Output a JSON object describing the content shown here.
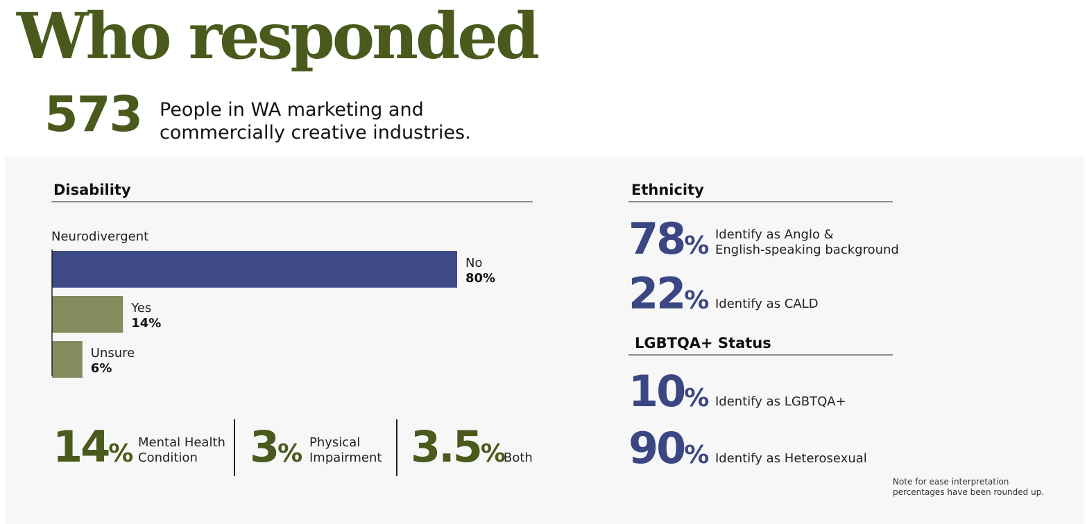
{
  "header": {
    "title": "Who responded",
    "count": "573",
    "subtitle_line1": "People in WA marketing and",
    "subtitle_line2": "commercially creative industries."
  },
  "disability": {
    "heading": "Disability",
    "conditions": [
      {
        "value": "14",
        "pct": "%",
        "line1": "Mental Health",
        "line2": "Condition"
      },
      {
        "value": "3",
        "pct": "%",
        "line1": "Physical",
        "line2": "Impairment"
      },
      {
        "value": "3.5",
        "pct": "%",
        "line1": "",
        "line2": "Both"
      }
    ]
  },
  "chart_data": {
    "type": "bar",
    "orientation": "horizontal",
    "title": "Neurodivergent",
    "categories": [
      "No",
      "Yes",
      "Unsure"
    ],
    "values": [
      80,
      14,
      6
    ],
    "value_labels": [
      "80%",
      "14%",
      "6%"
    ],
    "colors": [
      "#3d4a85",
      "#858b5c",
      "#858b5c"
    ],
    "xlim": [
      0,
      80
    ]
  },
  "ethnicity": {
    "heading": "Ethnicity",
    "items": [
      {
        "value": "78",
        "pct": "%",
        "line1": "Identify as Anglo &",
        "line2": "English-speaking background"
      },
      {
        "value": "22",
        "pct": "%",
        "line1": "Identify as CALD",
        "line2": ""
      }
    ]
  },
  "lgbtqa": {
    "heading": "LGBTQA+ Status",
    "items": [
      {
        "value": "10",
        "pct": "%",
        "line1": "Identify as  LGBTQA+"
      },
      {
        "value": "90",
        "pct": "%",
        "line1": "Identify as Heterosexual"
      }
    ]
  },
  "note": {
    "line1": "Note for ease interpretation",
    "line2": "percentages have been rounded up."
  },
  "colors": {
    "green": "#4a5a1c",
    "blue": "#3b4783",
    "bar_blue": "#3d4a85",
    "bar_olive": "#858b5c",
    "panel_bg": "#f8f7f8"
  }
}
